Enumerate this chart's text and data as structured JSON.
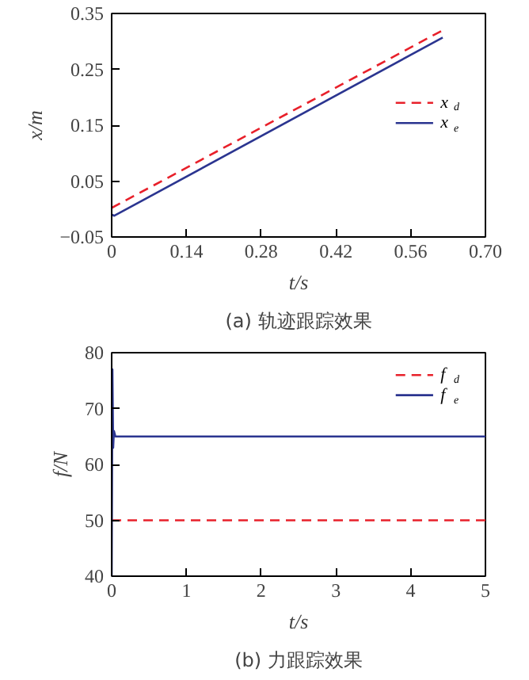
{
  "chart_data": [
    {
      "type": "line",
      "title": "(a) 轨迹跟踪效果",
      "xlabel": "t/s",
      "ylabel": "x/m",
      "xlim": [
        0,
        0.7
      ],
      "xticks": [
        0,
        0.14,
        0.28,
        0.42,
        0.56,
        {
          "value": 0.7,
          "label": "0.70"
        }
      ],
      "ylim": [
        -0.05,
        0.35
      ],
      "yticks": [
        -0.05,
        0.05,
        0.15,
        0.25,
        0.35
      ],
      "legend": "right",
      "grid": false,
      "series": [
        {
          "name": "x$_{d}$",
          "color": "#e8202a",
          "line_style": "dashed",
          "x": [
            0,
            0.62
          ],
          "values": [
            0.002,
            0.32
          ]
        },
        {
          "name": "x$_{e}$",
          "color": "#2b3590",
          "line_style": "solid",
          "x": [
            0,
            0.005,
            0.62
          ],
          "values": [
            -0.01,
            -0.012,
            0.307
          ]
        }
      ]
    },
    {
      "type": "line",
      "title": "(b) 力跟踪效果",
      "xlabel": "t/s",
      "ylabel": "f/N",
      "xlim": [
        0,
        5
      ],
      "xticks": [
        0,
        1,
        2,
        3,
        4,
        5
      ],
      "ylim": [
        40,
        80
      ],
      "yticks": [
        40,
        50,
        60,
        70,
        80
      ],
      "legend": "top right",
      "grid": false,
      "series": [
        {
          "name": "f$_{d}$",
          "color": "#e8202a",
          "line_style": "dashed",
          "x": [
            0,
            5
          ],
          "values": [
            50,
            50
          ]
        },
        {
          "name": "f$_{e}$",
          "color": "#2b3590",
          "line_style": "solid",
          "x": [
            0,
            0.01,
            0.02,
            0.03,
            0.05,
            5
          ],
          "values": [
            40,
            77,
            63,
            66,
            65,
            65
          ]
        }
      ]
    }
  ]
}
